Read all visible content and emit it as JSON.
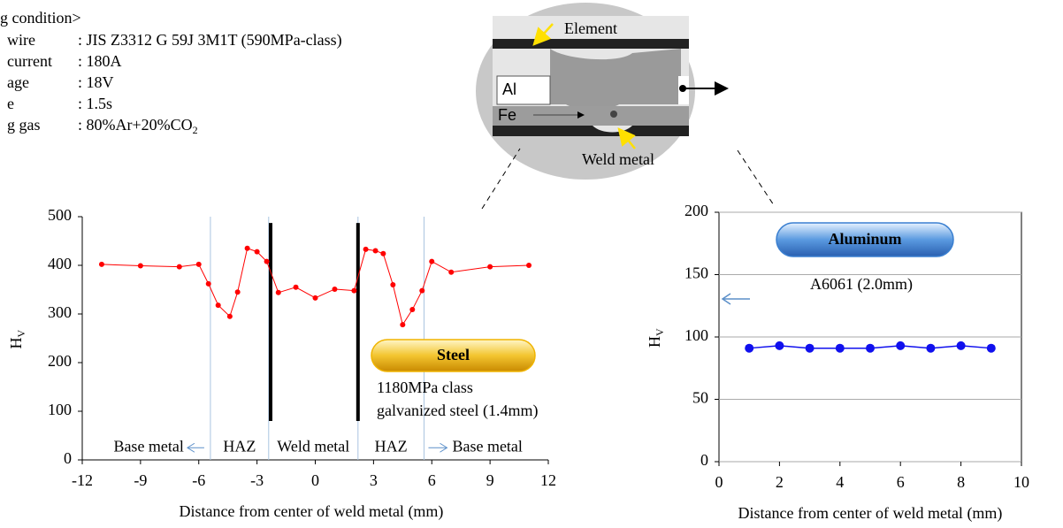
{
  "welding_condition": {
    "title": "g condition>",
    "rows": [
      {
        "label": "wire",
        "value": ": JIS Z3312 G 59J 3M1T (590MPa-class)"
      },
      {
        "label": "current",
        "value": ": 180A"
      },
      {
        "label": "age",
        "value": ": 18V"
      },
      {
        "label": "e",
        "value": ": 1.5s"
      },
      {
        "label": "g gas",
        "value": ": 80%Ar+20%CO",
        "sub": "2"
      }
    ]
  },
  "micrograph": {
    "element": "Element",
    "al": "Al",
    "fe": "Fe",
    "weld_metal": "Weld metal"
  },
  "chart_data": [
    {
      "type": "line",
      "x_label": "Distance from center of weld metal (mm)",
      "y_label": "H",
      "y_label_sub": "V",
      "x": [
        -11,
        -9,
        -7,
        -6,
        -5.5,
        -5,
        -4.4,
        -4,
        -3.5,
        -3,
        -2.5,
        -1.9,
        -1,
        0,
        1,
        2,
        2.6,
        3.1,
        3.5,
        4,
        4.5,
        5,
        5.5,
        6,
        7,
        9,
        11
      ],
      "series": [
        {
          "color": "#ff0000",
          "values": [
            402,
            399,
            397,
            402,
            362,
            318,
            295,
            345,
            435,
            428,
            408,
            344,
            355,
            333,
            351,
            348,
            433,
            430,
            424,
            360,
            278,
            309,
            348,
            408,
            386,
            397,
            400
          ]
        }
      ],
      "xlim": [
        -12,
        12
      ],
      "xticks": [
        -12,
        -9,
        -6,
        -3,
        0,
        3,
        6,
        9,
        12
      ],
      "ylim": [
        0,
        500
      ],
      "yticks": [
        0,
        100,
        200,
        300,
        400,
        500
      ],
      "grid": false,
      "badge": "Steel",
      "badge_color": "#f0b400",
      "notes": [
        "1180MPa class",
        "galvanized steel (1.4mm)"
      ],
      "zone_boundaries": [
        -5.4,
        -2.4,
        2.2,
        5.6
      ],
      "fusion_lines": [
        -2.3,
        2.2
      ],
      "fusion_line_range": [
        80,
        487
      ],
      "zones": [
        "Base metal",
        "HAZ",
        "Weld metal",
        "HAZ",
        "Base metal"
      ]
    },
    {
      "type": "line",
      "x_label": "Distance from center of weld metal (mm)",
      "y_label": "H",
      "y_label_sub": "V",
      "x": [
        1,
        2,
        3,
        4,
        5,
        6,
        7,
        8,
        9
      ],
      "series": [
        {
          "color": "#1010ee",
          "values": [
            91,
            93,
            91,
            91,
            91,
            93,
            91,
            93,
            91
          ]
        }
      ],
      "xlim": [
        0,
        10
      ],
      "xticks": [
        0,
        2,
        4,
        6,
        8,
        10
      ],
      "ylim": [
        0,
        200
      ],
      "yticks": [
        0,
        50,
        100,
        150,
        200
      ],
      "grid": true,
      "badge": "Aluminum",
      "badge_color": "#3a7fd0",
      "notes": [
        "A6061 (2.0mm)"
      ]
    }
  ]
}
